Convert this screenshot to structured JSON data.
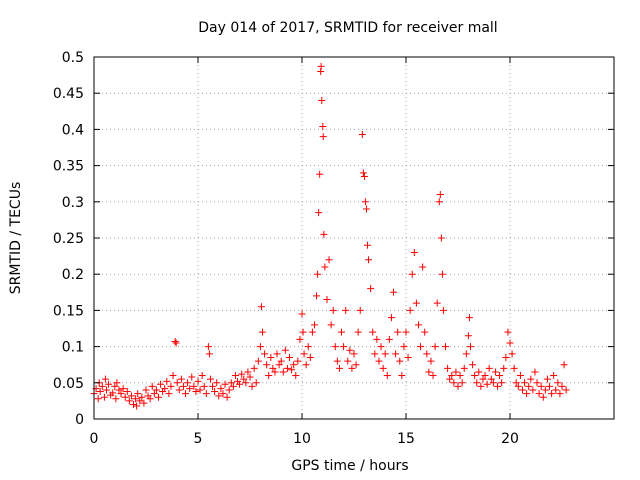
{
  "chart_data": {
    "type": "scatter",
    "title": "Day 014 of 2017, SRMTID for receiver mall",
    "xlabel": "GPS time / hours",
    "ylabel": "SRMTID / TECUs",
    "xlim": [
      0,
      25
    ],
    "ylim": [
      0,
      0.5
    ],
    "xticks": [
      0,
      5,
      10,
      15,
      20
    ],
    "xtick_labels": [
      "0",
      "5",
      "10",
      "15",
      "20"
    ],
    "yticks": [
      0,
      0.05,
      0.1,
      0.15,
      0.2,
      0.25,
      0.3,
      0.35,
      0.4,
      0.45,
      0.5
    ],
    "ytick_labels": [
      "0",
      "0.05",
      "0.1",
      "0.15",
      "0.2",
      "0.25",
      "0.3",
      "0.35",
      "0.4",
      "0.45",
      "0.5"
    ],
    "grid": true,
    "marker": "+",
    "series": [
      {
        "name": "SRMTID",
        "color": "#ff0000",
        "points": [
          [
            0.0,
            0.035
          ],
          [
            0.1,
            0.042
          ],
          [
            0.2,
            0.028
          ],
          [
            0.25,
            0.05
          ],
          [
            0.3,
            0.038
          ],
          [
            0.4,
            0.045
          ],
          [
            0.5,
            0.03
          ],
          [
            0.55,
            0.055
          ],
          [
            0.6,
            0.04
          ],
          [
            0.7,
            0.048
          ],
          [
            0.8,
            0.033
          ],
          [
            0.9,
            0.036
          ],
          [
            1.0,
            0.045
          ],
          [
            1.05,
            0.028
          ],
          [
            1.1,
            0.05
          ],
          [
            1.2,
            0.04
          ],
          [
            1.3,
            0.035
          ],
          [
            1.4,
            0.042
          ],
          [
            1.5,
            0.03
          ],
          [
            1.6,
            0.038
          ],
          [
            1.7,
            0.025
          ],
          [
            1.8,
            0.032
          ],
          [
            1.9,
            0.02
          ],
          [
            2.0,
            0.028
          ],
          [
            2.05,
            0.018
          ],
          [
            2.1,
            0.035
          ],
          [
            2.2,
            0.025
          ],
          [
            2.3,
            0.03
          ],
          [
            2.4,
            0.022
          ],
          [
            2.5,
            0.04
          ],
          [
            2.6,
            0.032
          ],
          [
            2.7,
            0.028
          ],
          [
            2.8,
            0.045
          ],
          [
            2.9,
            0.035
          ],
          [
            3.0,
            0.04
          ],
          [
            3.1,
            0.03
          ],
          [
            3.2,
            0.048
          ],
          [
            3.3,
            0.038
          ],
          [
            3.4,
            0.042
          ],
          [
            3.5,
            0.052
          ],
          [
            3.6,
            0.035
          ],
          [
            3.7,
            0.045
          ],
          [
            3.8,
            0.06
          ],
          [
            3.9,
            0.107
          ],
          [
            3.95,
            0.105
          ],
          [
            4.0,
            0.05
          ],
          [
            4.1,
            0.04
          ],
          [
            4.2,
            0.055
          ],
          [
            4.3,
            0.045
          ],
          [
            4.4,
            0.035
          ],
          [
            4.5,
            0.05
          ],
          [
            4.6,
            0.042
          ],
          [
            4.7,
            0.058
          ],
          [
            4.8,
            0.045
          ],
          [
            4.9,
            0.038
          ],
          [
            5.0,
            0.052
          ],
          [
            5.1,
            0.04
          ],
          [
            5.2,
            0.06
          ],
          [
            5.3,
            0.045
          ],
          [
            5.4,
            0.035
          ],
          [
            5.5,
            0.1
          ],
          [
            5.55,
            0.09
          ],
          [
            5.6,
            0.055
          ],
          [
            5.7,
            0.045
          ],
          [
            5.8,
            0.038
          ],
          [
            5.9,
            0.05
          ],
          [
            6.0,
            0.032
          ],
          [
            6.1,
            0.042
          ],
          [
            6.2,
            0.035
          ],
          [
            6.3,
            0.048
          ],
          [
            6.4,
            0.03
          ],
          [
            6.5,
            0.04
          ],
          [
            6.6,
            0.05
          ],
          [
            6.7,
            0.045
          ],
          [
            6.8,
            0.06
          ],
          [
            6.9,
            0.052
          ],
          [
            7.0,
            0.048
          ],
          [
            7.1,
            0.062
          ],
          [
            7.2,
            0.055
          ],
          [
            7.3,
            0.05
          ],
          [
            7.4,
            0.065
          ],
          [
            7.5,
            0.058
          ],
          [
            7.6,
            0.045
          ],
          [
            7.7,
            0.07
          ],
          [
            7.8,
            0.05
          ],
          [
            7.9,
            0.08
          ],
          [
            8.0,
            0.1
          ],
          [
            8.05,
            0.155
          ],
          [
            8.1,
            0.12
          ],
          [
            8.2,
            0.09
          ],
          [
            8.3,
            0.075
          ],
          [
            8.4,
            0.06
          ],
          [
            8.5,
            0.085
          ],
          [
            8.6,
            0.07
          ],
          [
            8.7,
            0.065
          ],
          [
            8.8,
            0.09
          ],
          [
            8.9,
            0.075
          ],
          [
            9.0,
            0.08
          ],
          [
            9.1,
            0.065
          ],
          [
            9.2,
            0.095
          ],
          [
            9.3,
            0.07
          ],
          [
            9.4,
            0.085
          ],
          [
            9.5,
            0.068
          ],
          [
            9.6,
            0.075
          ],
          [
            9.7,
            0.06
          ],
          [
            9.8,
            0.08
          ],
          [
            9.9,
            0.11
          ],
          [
            10.0,
            0.145
          ],
          [
            10.05,
            0.12
          ],
          [
            10.1,
            0.09
          ],
          [
            10.2,
            0.075
          ],
          [
            10.3,
            0.1
          ],
          [
            10.4,
            0.085
          ],
          [
            10.5,
            0.12
          ],
          [
            10.6,
            0.13
          ],
          [
            10.7,
            0.17
          ],
          [
            10.75,
            0.2
          ],
          [
            10.8,
            0.285
          ],
          [
            10.85,
            0.338
          ],
          [
            10.9,
            0.48
          ],
          [
            10.92,
            0.487
          ],
          [
            10.95,
            0.44
          ],
          [
            11.0,
            0.404
          ],
          [
            11.02,
            0.39
          ],
          [
            11.05,
            0.255
          ],
          [
            11.1,
            0.21
          ],
          [
            11.2,
            0.165
          ],
          [
            11.3,
            0.22
          ],
          [
            11.4,
            0.13
          ],
          [
            11.5,
            0.15
          ],
          [
            11.6,
            0.1
          ],
          [
            11.7,
            0.08
          ],
          [
            11.8,
            0.07
          ],
          [
            11.9,
            0.12
          ],
          [
            12.0,
            0.1
          ],
          [
            12.1,
            0.15
          ],
          [
            12.2,
            0.08
          ],
          [
            12.3,
            0.095
          ],
          [
            12.4,
            0.07
          ],
          [
            12.5,
            0.09
          ],
          [
            12.6,
            0.075
          ],
          [
            12.7,
            0.12
          ],
          [
            12.8,
            0.15
          ],
          [
            12.9,
            0.393
          ],
          [
            12.95,
            0.34
          ],
          [
            13.0,
            0.335
          ],
          [
            13.05,
            0.3
          ],
          [
            13.1,
            0.29
          ],
          [
            13.15,
            0.24
          ],
          [
            13.2,
            0.22
          ],
          [
            13.3,
            0.18
          ],
          [
            13.4,
            0.12
          ],
          [
            13.5,
            0.09
          ],
          [
            13.6,
            0.11
          ],
          [
            13.7,
            0.08
          ],
          [
            13.8,
            0.1
          ],
          [
            13.9,
            0.07
          ],
          [
            14.0,
            0.09
          ],
          [
            14.1,
            0.06
          ],
          [
            14.2,
            0.11
          ],
          [
            14.3,
            0.14
          ],
          [
            14.4,
            0.175
          ],
          [
            14.5,
            0.09
          ],
          [
            14.6,
            0.12
          ],
          [
            14.7,
            0.08
          ],
          [
            14.8,
            0.06
          ],
          [
            14.9,
            0.1
          ],
          [
            15.0,
            0.12
          ],
          [
            15.1,
            0.085
          ],
          [
            15.2,
            0.15
          ],
          [
            15.3,
            0.2
          ],
          [
            15.4,
            0.23
          ],
          [
            15.5,
            0.16
          ],
          [
            15.6,
            0.13
          ],
          [
            15.7,
            0.1
          ],
          [
            15.8,
            0.21
          ],
          [
            15.9,
            0.12
          ],
          [
            16.0,
            0.09
          ],
          [
            16.1,
            0.065
          ],
          [
            16.2,
            0.08
          ],
          [
            16.3,
            0.06
          ],
          [
            16.4,
            0.1
          ],
          [
            16.5,
            0.16
          ],
          [
            16.6,
            0.3
          ],
          [
            16.65,
            0.31
          ],
          [
            16.7,
            0.25
          ],
          [
            16.75,
            0.2
          ],
          [
            16.8,
            0.15
          ],
          [
            16.9,
            0.1
          ],
          [
            17.0,
            0.07
          ],
          [
            17.1,
            0.055
          ],
          [
            17.2,
            0.06
          ],
          [
            17.3,
            0.05
          ],
          [
            17.4,
            0.065
          ],
          [
            17.5,
            0.045
          ],
          [
            17.6,
            0.06
          ],
          [
            17.7,
            0.05
          ],
          [
            17.8,
            0.07
          ],
          [
            17.9,
            0.09
          ],
          [
            18.0,
            0.115
          ],
          [
            18.05,
            0.14
          ],
          [
            18.1,
            0.1
          ],
          [
            18.2,
            0.075
          ],
          [
            18.3,
            0.06
          ],
          [
            18.4,
            0.05
          ],
          [
            18.5,
            0.065
          ],
          [
            18.6,
            0.045
          ],
          [
            18.7,
            0.055
          ],
          [
            18.8,
            0.06
          ],
          [
            18.9,
            0.048
          ],
          [
            19.0,
            0.07
          ],
          [
            19.1,
            0.055
          ],
          [
            19.2,
            0.05
          ],
          [
            19.3,
            0.065
          ],
          [
            19.4,
            0.045
          ],
          [
            19.5,
            0.06
          ],
          [
            19.6,
            0.05
          ],
          [
            19.7,
            0.07
          ],
          [
            19.8,
            0.085
          ],
          [
            19.9,
            0.12
          ],
          [
            20.0,
            0.105
          ],
          [
            20.1,
            0.09
          ],
          [
            20.2,
            0.07
          ],
          [
            20.3,
            0.05
          ],
          [
            20.4,
            0.045
          ],
          [
            20.5,
            0.06
          ],
          [
            20.6,
            0.04
          ],
          [
            20.7,
            0.05
          ],
          [
            20.8,
            0.035
          ],
          [
            20.9,
            0.045
          ],
          [
            21.0,
            0.055
          ],
          [
            21.1,
            0.04
          ],
          [
            21.2,
            0.065
          ],
          [
            21.3,
            0.05
          ],
          [
            21.4,
            0.035
          ],
          [
            21.5,
            0.045
          ],
          [
            21.6,
            0.03
          ],
          [
            21.7,
            0.04
          ],
          [
            21.8,
            0.055
          ],
          [
            21.9,
            0.045
          ],
          [
            22.0,
            0.035
          ],
          [
            22.1,
            0.06
          ],
          [
            22.2,
            0.04
          ],
          [
            22.3,
            0.05
          ],
          [
            22.4,
            0.035
          ],
          [
            22.5,
            0.045
          ],
          [
            22.6,
            0.075
          ],
          [
            22.7,
            0.04
          ]
        ]
      }
    ]
  }
}
